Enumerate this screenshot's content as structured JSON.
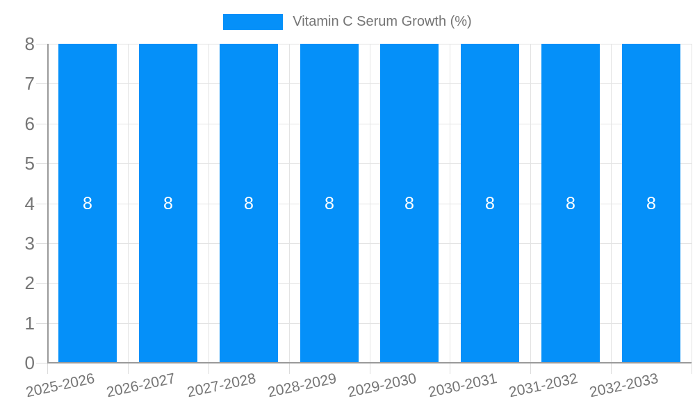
{
  "chart_data": {
    "type": "bar",
    "title": "Vitamin C Serum Growth (%)",
    "legend": {
      "position": "top",
      "label": "Vitamin C Serum Growth (%)"
    },
    "categories": [
      "2025-2026",
      "2026-2027",
      "2027-2028",
      "2028-2029",
      "2029-2030",
      "2030-2031",
      "2031-2032",
      "2032-2033"
    ],
    "series": [
      {
        "name": "Vitamin C Serum Growth (%)",
        "values": [
          8,
          8,
          8,
          8,
          8,
          8,
          8,
          8
        ]
      }
    ],
    "bar_value_labels": [
      "8",
      "8",
      "8",
      "8",
      "8",
      "8",
      "8",
      "8"
    ],
    "xlabel": "",
    "ylabel": "",
    "ylim": [
      0,
      8
    ],
    "yticks": [
      0,
      1,
      2,
      3,
      4,
      5,
      6,
      7,
      8
    ],
    "grid": true,
    "x_label_rotation_deg": -12,
    "colors": {
      "bar": "#0590f9",
      "grid": "#e3e3e3",
      "tick": "#dcdcdc",
      "axis": "#9a9a9a",
      "tick_text": "#757575",
      "bar_label_text": "#ffffff"
    }
  }
}
